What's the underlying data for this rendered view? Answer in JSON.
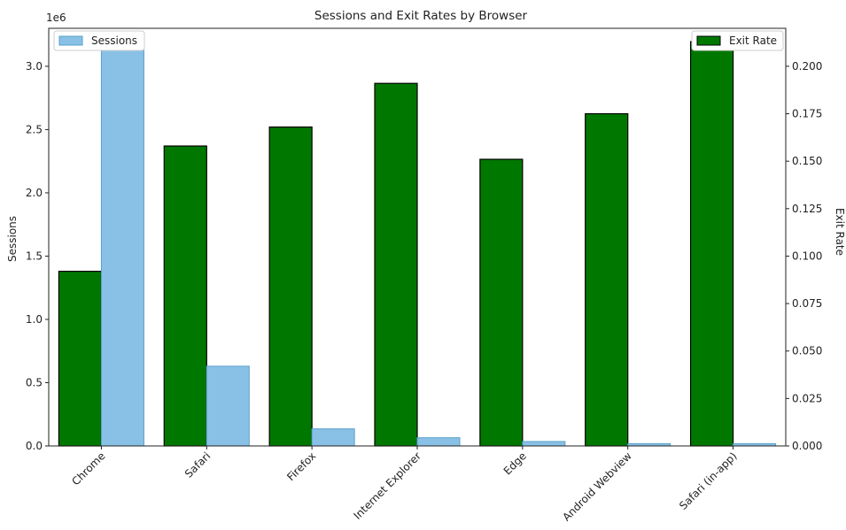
{
  "chart_data": {
    "type": "bar",
    "title": "Sessions and Exit Rates by Browser",
    "categories": [
      "Chrome",
      "Safari",
      "Firefox",
      "Internet Explorer",
      "Edge",
      "Android Webview",
      "Safari (in-app)"
    ],
    "xlabel": "",
    "y_left": {
      "label": "Sessions",
      "offset_text": "1e6",
      "lim": [
        0,
        3.3
      ],
      "ticks": [
        0.0,
        0.5,
        1.0,
        1.5,
        2.0,
        2.5,
        3.0
      ],
      "tick_labels": [
        "0.0",
        "0.5",
        "1.0",
        "1.5",
        "2.0",
        "2.5",
        "3.0"
      ]
    },
    "y_right": {
      "label": "Exit Rate",
      "lim": [
        0,
        0.22
      ],
      "ticks": [
        0.0,
        0.025,
        0.05,
        0.075,
        0.1,
        0.125,
        0.15,
        0.175,
        0.2
      ],
      "tick_labels": [
        "0.000",
        "0.025",
        "0.050",
        "0.075",
        "0.100",
        "0.125",
        "0.150",
        "0.175",
        "0.200"
      ]
    },
    "series": [
      {
        "name": "Exit Rate",
        "axis": "right",
        "color": "#007800",
        "edge": "#000000",
        "values": [
          0.092,
          0.158,
          0.168,
          0.191,
          0.151,
          0.175,
          0.213
        ]
      },
      {
        "name": "Sessions",
        "axis": "left",
        "color": "#88c1e5",
        "edge": "#5aa0cc",
        "values": [
          3200000,
          630000,
          135000,
          65000,
          35000,
          18000,
          18000
        ]
      }
    ],
    "legend": [
      "upper-left: Sessions",
      "upper-right: Exit Rate"
    ],
    "grid": false
  }
}
